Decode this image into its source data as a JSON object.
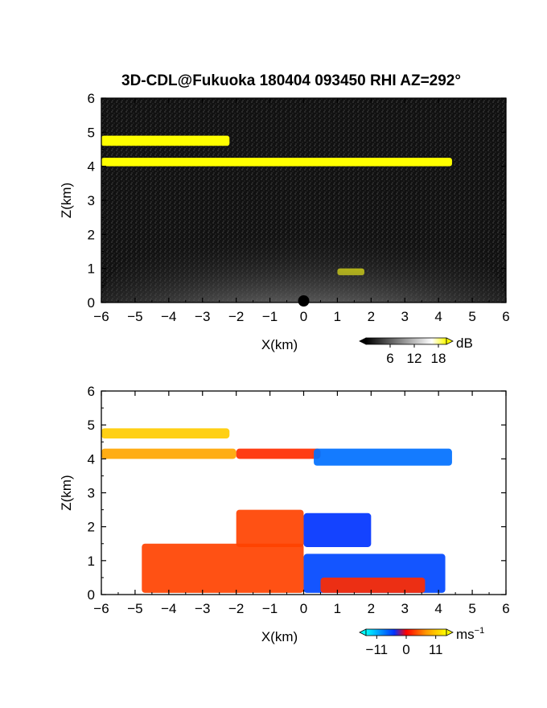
{
  "title": "3D-CDL@Fukuoka 180404 093450 RHI AZ=292°",
  "chart_data": [
    {
      "type": "heatmap",
      "quantity": "backscatter",
      "xlabel": "X(km)",
      "ylabel": "Z(km)",
      "xlim": [
        -6,
        6
      ],
      "ylim": [
        0,
        6
      ],
      "xticks": [
        -6,
        -5,
        -4,
        -3,
        -2,
        -1,
        0,
        1,
        2,
        3,
        4,
        5,
        6
      ],
      "yticks": [
        0,
        1,
        2,
        3,
        4,
        5,
        6
      ],
      "colorbar": {
        "unit": "dB",
        "ticks": [
          6,
          12,
          18
        ],
        "range": [
          0,
          20
        ],
        "colors": [
          "#000000",
          "#ffffff",
          "#ffff00"
        ]
      },
      "layers": [
        {
          "x": [
            -6.0,
            4.4
          ],
          "z": [
            4.0,
            4.25
          ],
          "level": 20
        },
        {
          "x": [
            -6.0,
            -2.2
          ],
          "z": [
            4.6,
            4.9
          ],
          "level": 20
        },
        {
          "x": [
            1.0,
            1.8
          ],
          "z": [
            0.8,
            1.0
          ],
          "level": 20
        },
        {
          "x": [
            -6.0,
            6.0
          ],
          "z": [
            0.0,
            2.6
          ],
          "level": 10
        }
      ]
    },
    {
      "type": "heatmap",
      "quantity": "doppler velocity",
      "xlabel": "X(km)",
      "ylabel": "Z(km)",
      "xlim": [
        -6,
        6
      ],
      "ylim": [
        0,
        6
      ],
      "xticks": [
        -6,
        -5,
        -4,
        -3,
        -2,
        -1,
        0,
        1,
        2,
        3,
        4,
        5,
        6
      ],
      "yticks": [
        0,
        1,
        2,
        3,
        4,
        5,
        6
      ],
      "colorbar": {
        "unit": "ms",
        "unit_exp": "−1",
        "ticks": [
          "−11",
          "0",
          "11"
        ],
        "range": [
          -15,
          15
        ],
        "colors": [
          "#00ffff",
          "#0033ff",
          "#ff0000",
          "#ff9900",
          "#ffff00"
        ]
      },
      "regions": [
        {
          "x": [
            -6.0,
            -2.2
          ],
          "z": [
            4.6,
            4.9
          ],
          "value": 11
        },
        {
          "x": [
            -6.0,
            -2.0
          ],
          "z": [
            4.0,
            4.3
          ],
          "value": 8
        },
        {
          "x": [
            -2.0,
            0.5
          ],
          "z": [
            4.0,
            4.3
          ],
          "value": 2
        },
        {
          "x": [
            0.3,
            4.4
          ],
          "z": [
            3.8,
            4.3
          ],
          "value": -8
        },
        {
          "x": [
            -2.0,
            0.0
          ],
          "z": [
            1.4,
            2.5
          ],
          "value": 3
        },
        {
          "x": [
            0.0,
            2.0
          ],
          "z": [
            1.4,
            2.4
          ],
          "value": -5
        },
        {
          "x": [
            -4.8,
            0.0
          ],
          "z": [
            0.05,
            1.5
          ],
          "value": 3
        },
        {
          "x": [
            0.0,
            4.2
          ],
          "z": [
            0.05,
            1.2
          ],
          "value": -6
        },
        {
          "x": [
            0.5,
            3.6
          ],
          "z": [
            0.05,
            0.5
          ],
          "value": 2
        }
      ]
    }
  ]
}
